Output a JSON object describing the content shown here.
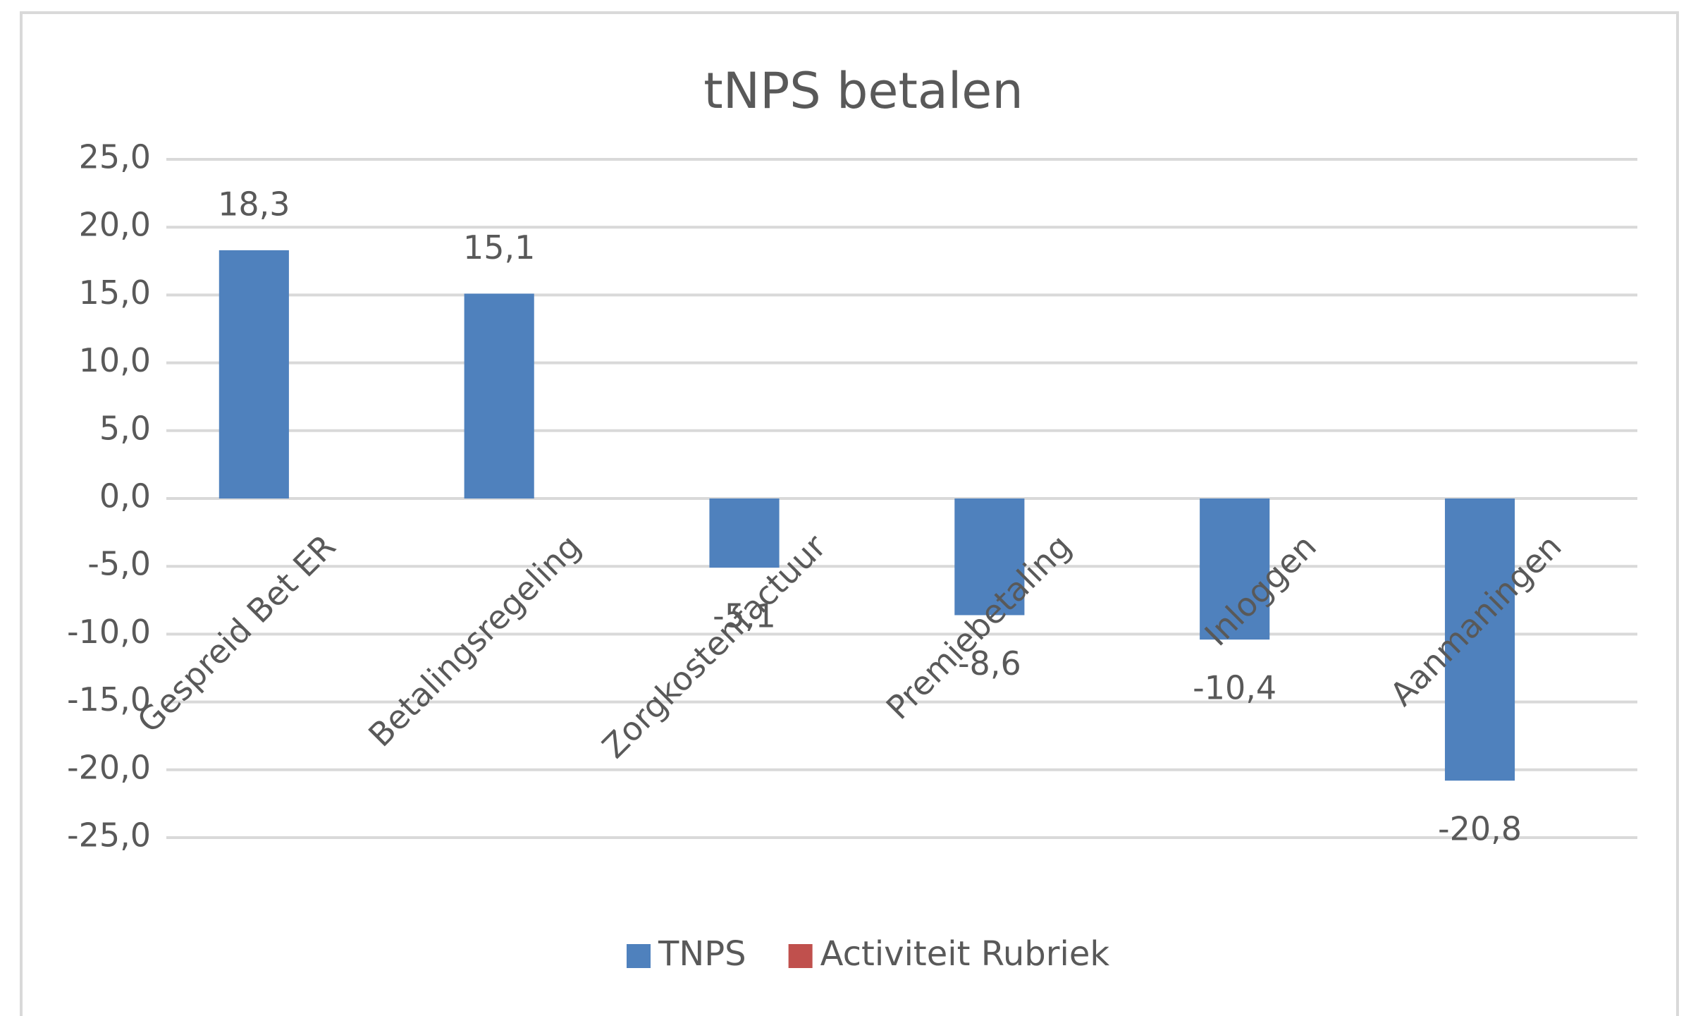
{
  "chart_data": {
    "type": "bar",
    "title": "tNPS betalen",
    "categories": [
      "Gespreid Bet ER",
      "Betalingsregeling",
      "Zorgkostenfactuur",
      "Premiebetaling",
      "Inloggen",
      "Aanmaningen"
    ],
    "series": [
      {
        "name": "TNPS",
        "color": "#4f81bd",
        "values": [
          18.3,
          15.1,
          -5.1,
          -8.6,
          -10.4,
          -20.8
        ],
        "value_labels": [
          "18,3",
          "15,1",
          "-5,1",
          "-8,6",
          "-10,4",
          "-20,8"
        ]
      },
      {
        "name": "Activiteit Rubriek",
        "color": "#c0504d",
        "values": [
          null,
          null,
          null,
          null,
          null,
          null
        ]
      }
    ],
    "ylim": [
      -25,
      25
    ],
    "yticks": [
      {
        "value": -25,
        "label": "-25,0"
      },
      {
        "value": -20,
        "label": "-20,0"
      },
      {
        "value": -15,
        "label": "-15,0"
      },
      {
        "value": -10,
        "label": "-10,0"
      },
      {
        "value": -5,
        "label": "-5,0"
      },
      {
        "value": 0,
        "label": "0,0"
      },
      {
        "value": 5,
        "label": "5,0"
      },
      {
        "value": 10,
        "label": "10,0"
      },
      {
        "value": 15,
        "label": "15,0"
      },
      {
        "value": 20,
        "label": "20,0"
      },
      {
        "value": 25,
        "label": "25,0"
      }
    ],
    "grid": true,
    "legend": "bottom"
  }
}
